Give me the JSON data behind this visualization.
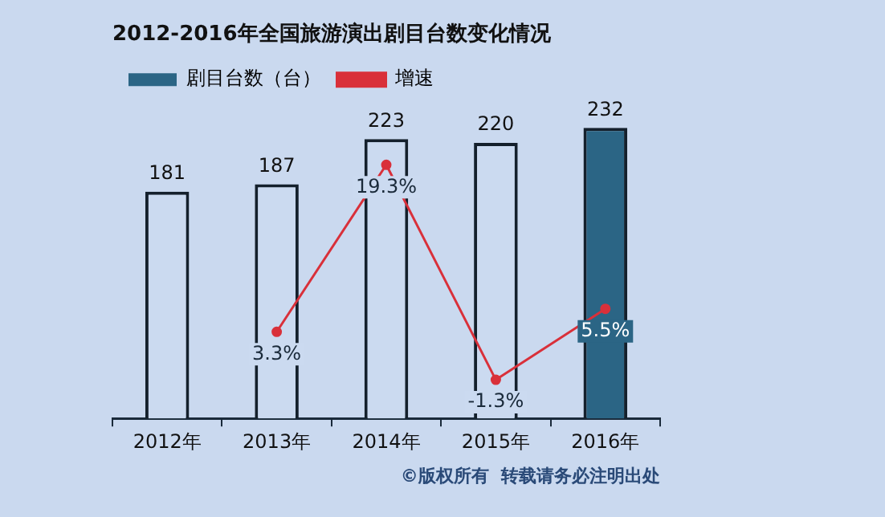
{
  "chart_data": {
    "type": "bar",
    "title": "2012-2016年全国旅游演出剧目台数变化情况",
    "categories": [
      "2012年",
      "2013年",
      "2014年",
      "2015年",
      "2016年"
    ],
    "series": [
      {
        "name": "剧目台数（台）",
        "color": "#2b6585",
        "colors": [
          "#cbdaf0",
          "#cbdaf0",
          "#cbdaf0",
          "#cbdaf0",
          "#2b6585"
        ],
        "values": [
          181,
          187,
          223,
          220,
          232
        ],
        "value_labels": [
          "181",
          "187",
          "223",
          "220",
          "232"
        ]
      },
      {
        "name": "增速",
        "type": "line",
        "axis": "y2",
        "color": "#d9303a",
        "values": [
          null,
          3.3,
          19.3,
          -1.3,
          5.5
        ],
        "value_labels": [
          null,
          "3.3%",
          "19.3%",
          "-1.3%",
          "5.5%"
        ]
      }
    ],
    "tick_labels": "x",
    "grid": false,
    "legend": "top left",
    "marker": "circle",
    "annotations": [
      "©版权所有  转载请务必注明出处"
    ]
  }
}
